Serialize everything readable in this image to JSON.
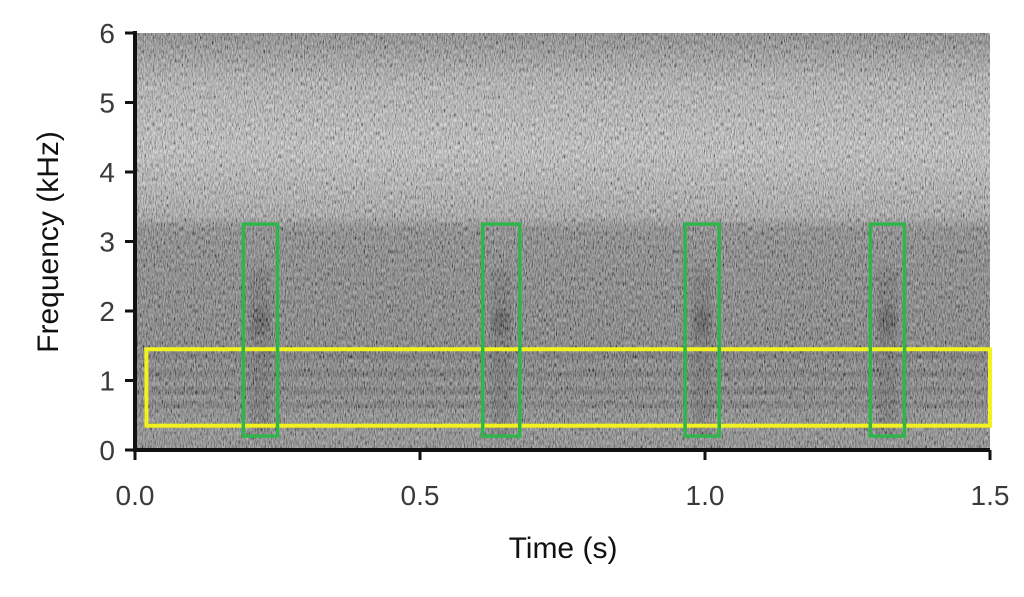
{
  "chart_data": {
    "type": "heatmap",
    "subtype": "spectrogram",
    "title": "",
    "xlabel": "Time (s)",
    "ylabel": "Frequency (kHz)",
    "xlim": [
      0,
      1.5
    ],
    "ylim": [
      0,
      6
    ],
    "x_ticks": [
      "0.0",
      "0.5",
      "1.0",
      "1.5"
    ],
    "x_tick_values": [
      0,
      0.5,
      1.0,
      1.5
    ],
    "y_ticks": [
      "0",
      "1",
      "2",
      "3",
      "4",
      "5",
      "6"
    ],
    "y_tick_values": [
      0,
      1,
      2,
      3,
      4,
      5,
      6
    ],
    "colormap": "grayscale (dark = high energy)",
    "harmonic_bands_khz": [
      0.65,
      0.85,
      1.1,
      1.35
    ],
    "noise_floor_boundary_khz": 3.3,
    "click_events": [
      {
        "t_start": 0.19,
        "t_end": 0.25,
        "f_low": 0.2,
        "f_high": 3.25
      },
      {
        "t_start": 0.61,
        "t_end": 0.675,
        "f_low": 0.2,
        "f_high": 3.25
      },
      {
        "t_start": 0.965,
        "t_end": 1.025,
        "f_low": 0.2,
        "f_high": 3.25
      },
      {
        "t_start": 1.29,
        "t_end": 1.35,
        "f_low": 0.2,
        "f_high": 3.25
      }
    ],
    "band_region": {
      "t_start": 0.02,
      "t_end": 1.5,
      "f_low": 0.35,
      "f_high": 1.45
    },
    "colors": {
      "click_boxes": "#2fb54a",
      "band_box": "#f2f21f",
      "axis": "#111111"
    },
    "grid": false,
    "legend": "none"
  }
}
